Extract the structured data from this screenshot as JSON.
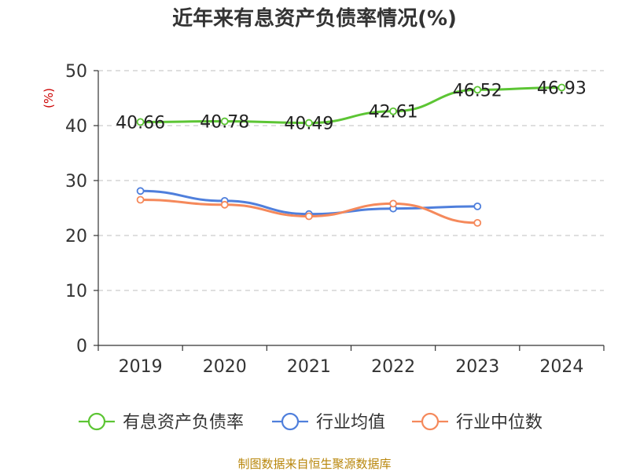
{
  "chart_data": {
    "type": "line",
    "title": "近年来有息资产负债率情况(%)",
    "y_unit": "(%)",
    "categories": [
      "2019",
      "2020",
      "2021",
      "2022",
      "2023",
      "2024"
    ],
    "ylim": [
      0,
      50
    ],
    "yticks": [
      0,
      10,
      20,
      30,
      40,
      50
    ],
    "grid": true,
    "legend_position": "bottom",
    "series": [
      {
        "name": "有息资产负债率",
        "color": "#5cc534",
        "values": [
          40.66,
          40.78,
          40.49,
          42.61,
          46.52,
          46.93
        ],
        "labels": true
      },
      {
        "name": "行业均值",
        "color": "#4f7fdc",
        "values": [
          28.1,
          26.3,
          23.9,
          24.9,
          25.3,
          null
        ],
        "labels": false
      },
      {
        "name": "行业中位数",
        "color": "#f5895b",
        "values": [
          26.5,
          25.6,
          23.5,
          25.8,
          22.3,
          null
        ],
        "labels": false
      }
    ]
  },
  "source_note": "制图数据来自恒生聚源数据库"
}
